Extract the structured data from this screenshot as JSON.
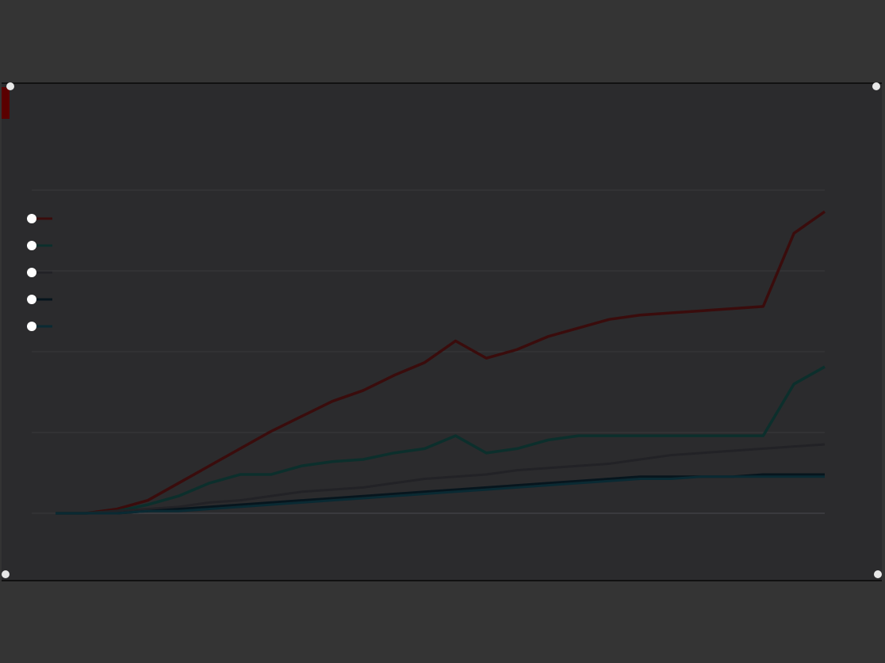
{
  "header": {
    "title": "",
    "subtitle": ""
  },
  "chart_data": {
    "type": "line",
    "x": [
      0,
      4,
      8,
      12,
      16,
      20,
      24,
      28,
      32,
      36,
      40,
      44,
      48,
      52,
      56,
      60,
      64,
      68,
      72,
      76,
      80,
      84,
      88,
      92,
      96,
      100
    ],
    "series": [
      {
        "name": "",
        "color": "#3a0c0c",
        "values": [
          0,
          0,
          2,
          6,
          14,
          22,
          30,
          38,
          45,
          52,
          57,
          64,
          70,
          80,
          72,
          76,
          82,
          86,
          90,
          92,
          93,
          94,
          95,
          96,
          130,
          140
        ]
      },
      {
        "name": "",
        "color": "#0c2f2c",
        "values": [
          0,
          0,
          1,
          4,
          8,
          14,
          18,
          18,
          22,
          24,
          25,
          28,
          30,
          36,
          28,
          30,
          34,
          36,
          36,
          36,
          36,
          36,
          36,
          36,
          60,
          68
        ]
      },
      {
        "name": "",
        "color": "#222226",
        "values": [
          0,
          0,
          1,
          2,
          3,
          5,
          6,
          8,
          10,
          11,
          12,
          14,
          16,
          17,
          18,
          20,
          21,
          22,
          23,
          25,
          27,
          28,
          29,
          30,
          31,
          32
        ]
      },
      {
        "name": "",
        "color": "#07151d",
        "values": [
          0,
          0,
          0,
          1,
          2,
          3,
          4,
          5,
          6,
          7,
          8,
          9,
          10,
          11,
          12,
          13,
          14,
          15,
          16,
          17,
          17,
          17,
          17,
          18,
          18,
          18
        ]
      },
      {
        "name": "",
        "color": "#0a2a33",
        "values": [
          0,
          0,
          0,
          1,
          1,
          2,
          3,
          4,
          5,
          6,
          7,
          8,
          9,
          10,
          11,
          12,
          13,
          14,
          15,
          16,
          16,
          17,
          17,
          17,
          17,
          17
        ]
      }
    ],
    "xlabel": "",
    "ylabel": "",
    "ylim": [
      0,
      150
    ],
    "xlim": [
      0,
      100
    ],
    "grid": true,
    "legend": "top-left"
  }
}
